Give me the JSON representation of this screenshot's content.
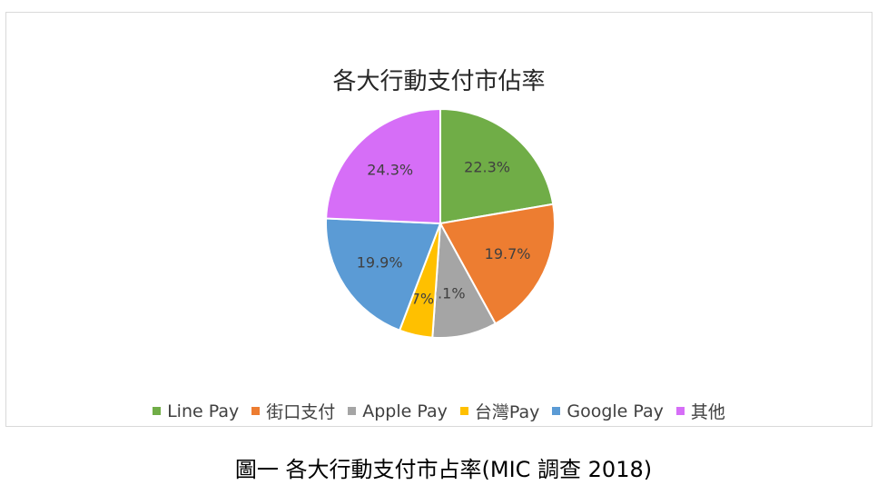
{
  "chart_data": {
    "type": "pie",
    "title": "各大行動支付市佔率",
    "categories": [
      "Line Pay",
      "街口支付",
      "Apple Pay",
      "台灣Pay",
      "Google Pay",
      "其他"
    ],
    "values": [
      22.3,
      19.7,
      9.1,
      4.7,
      19.9,
      24.3
    ],
    "data_labels": [
      "22.3%",
      "19.7%",
      "9.1%",
      "4.7%",
      "19.9%",
      "24.3%"
    ],
    "colors": [
      "#70AD47",
      "#ED7D31",
      "#A5A5A5",
      "#FFC000",
      "#5B9BD5",
      "#D66EF7"
    ],
    "start_angle": "12 o'clock",
    "direction": "clockwise",
    "legend_position": "bottom"
  },
  "caption": "圖一 各大行動支付市占率(MIC 調查 2018)"
}
